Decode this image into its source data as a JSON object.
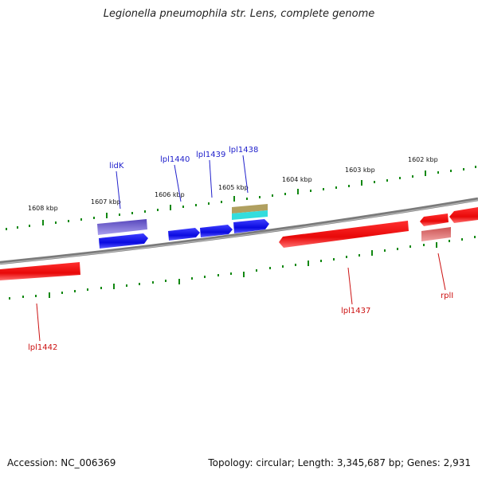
{
  "title": "Legionella pneumophila str. Lens, complete genome",
  "footer": {
    "accession": "Accession: NC_006369",
    "summary": "Topology: circular; Length: 3,345,687 bp; Genes: 2,931"
  },
  "scale_ticks": [
    "1608 kbp",
    "1607 kbp",
    "1606 kbp",
    "1605 kbp",
    "1604 kbp",
    "1603 kbp",
    "1602 kbp"
  ],
  "gene_labels": {
    "top": [
      "lidK",
      "lpl1440",
      "lpl1439",
      "lpl1438"
    ],
    "bottom": [
      "lpl1442",
      "lpl1437",
      "rplI"
    ]
  },
  "colors": {
    "backbone": "#808080",
    "forward_gene": "#1a1aee",
    "reverse_gene": "#ee1111",
    "tick": "#118811",
    "forward_label": "#2222cc",
    "reverse_label": "#cc1111",
    "lavender_feature": "#6655cc",
    "pink_feature": "#e07070",
    "tan_feature": "#b0a060",
    "cyan_feature": "#33dddd"
  }
}
